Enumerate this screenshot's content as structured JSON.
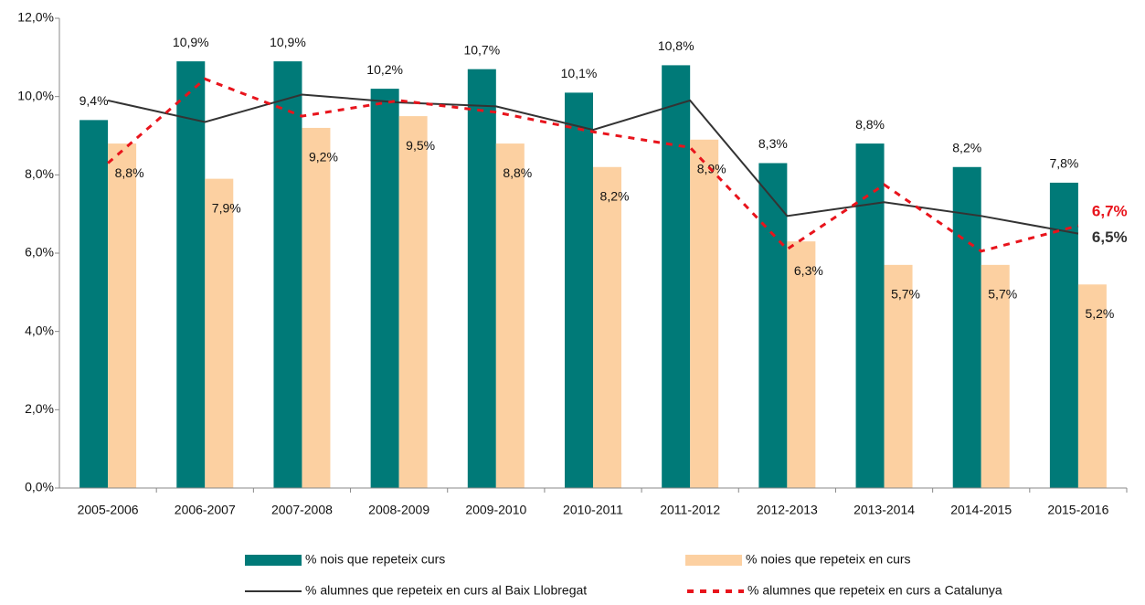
{
  "chart_data": {
    "type": "bar",
    "categories": [
      "2005-2006",
      "2006-2007",
      "2007-2008",
      "2008-2009",
      "2009-2010",
      "2010-2011",
      "2011-2012",
      "2012-2013",
      "2013-2014",
      "2014-2015",
      "2015-2016"
    ],
    "series": [
      {
        "name": "% nois que repeteix curs",
        "type": "bar",
        "color": "#007a78",
        "values": [
          9.4,
          10.9,
          10.9,
          10.2,
          10.7,
          10.1,
          10.8,
          8.3,
          8.8,
          8.2,
          7.8
        ],
        "value_labels": [
          "9,4%",
          "10,9%",
          "10,9%",
          "10,2%",
          "10,7%",
          "10,1%",
          "10,8%",
          "8,3%",
          "8,8%",
          "8,2%",
          "7,8%"
        ]
      },
      {
        "name": "% noies que repeteix en curs",
        "type": "bar",
        "color": "#fcd0a1",
        "values": [
          8.8,
          7.9,
          9.2,
          9.5,
          8.8,
          8.2,
          8.9,
          6.3,
          5.7,
          5.7,
          5.2
        ],
        "value_labels": [
          "8,8%",
          "7,9%",
          "9,2%",
          "9,5%",
          "8,8%",
          "8,2%",
          "8,9%",
          "6,3%",
          "5,7%",
          "5,7%",
          "5,2%"
        ]
      },
      {
        "name": "% alumnes que repeteix en curs al Baix Llobregat",
        "type": "line",
        "color": "#333333",
        "line_style": "solid",
        "values": [
          9.9,
          9.35,
          10.05,
          9.85,
          9.75,
          9.15,
          9.9,
          6.95,
          7.3,
          6.95,
          6.5
        ],
        "value_labels": [
          null,
          null,
          null,
          null,
          null,
          null,
          null,
          null,
          null,
          null,
          "6,5%"
        ]
      },
      {
        "name": "% alumnes que repeteix en curs a Catalunya",
        "type": "line",
        "color": "#e8141c",
        "line_style": "dashed",
        "values": [
          8.3,
          10.45,
          9.5,
          9.9,
          9.6,
          9.1,
          8.7,
          6.1,
          7.75,
          6.05,
          6.7
        ],
        "value_labels": [
          null,
          null,
          null,
          null,
          null,
          null,
          null,
          null,
          null,
          null,
          "6,7%"
        ]
      }
    ],
    "ylim": [
      0,
      12
    ],
    "yticks": [
      {
        "value": 0,
        "label": "0,0%"
      },
      {
        "value": 2,
        "label": "2,0%"
      },
      {
        "value": 4,
        "label": "4,0%"
      },
      {
        "value": 6,
        "label": "6,0%"
      },
      {
        "value": 8,
        "label": "8,0%"
      },
      {
        "value": 10,
        "label": "10,0%"
      },
      {
        "value": 12,
        "label": "12,0%"
      }
    ],
    "grid": false
  }
}
